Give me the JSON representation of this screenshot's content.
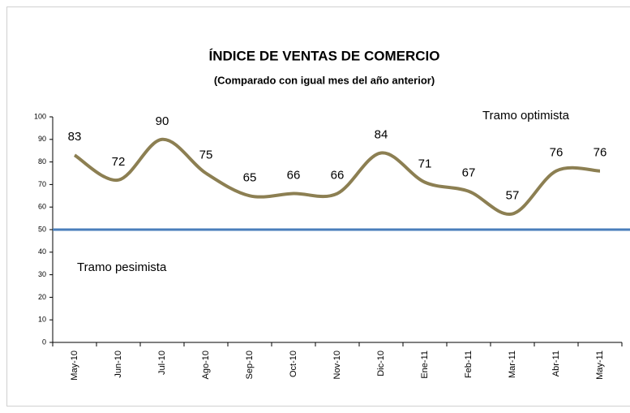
{
  "chart_data": {
    "type": "line",
    "title": "ÍNDICE DE VENTAS DE COMERCIO",
    "subtitle": "(Comparado con igual mes del año anterior)",
    "categories": [
      "May-10",
      "Jun-10",
      "Jul-10",
      "Ago-10",
      "Sep-10",
      "Oct-10",
      "Nov-10",
      "Dic-10",
      "Ene-11",
      "Feb-11",
      "Mar-11",
      "Abr-11",
      "May-11"
    ],
    "series": [
      {
        "name": "Índice",
        "color": "#8c7f52",
        "values": [
          83,
          72,
          90,
          75,
          65,
          66,
          66,
          84,
          71,
          67,
          57,
          76,
          76
        ]
      }
    ],
    "ylim": [
      0,
      100
    ],
    "yticks": [
      0,
      10,
      20,
      30,
      40,
      50,
      60,
      70,
      80,
      90,
      100
    ],
    "reference_line": {
      "value": 50,
      "color": "#4a7ebb"
    },
    "annotations": [
      "Tramo optimista",
      "Tramo pesimista"
    ]
  }
}
